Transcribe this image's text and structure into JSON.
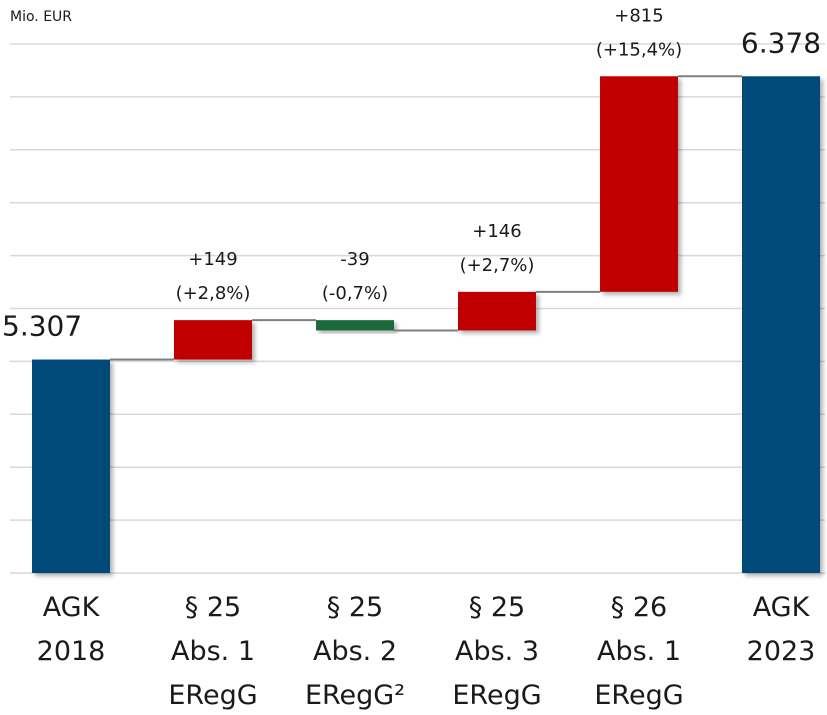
{
  "chart_data": {
    "type": "waterfall",
    "y_label": "Mio. EUR",
    "categories": [
      "AGK\n2018",
      "§ 25\nAbs. 1\nERegG",
      "§ 25\nAbs. 2\nERegG²",
      "§ 25\nAbs. 3\nERegG",
      "§ 26\nAbs. 1\nERegG",
      "AGK\n2023"
    ],
    "values": [
      5307,
      149,
      -39,
      146,
      815,
      6378
    ],
    "value_labels": [
      "5.307",
      "+149",
      "-39",
      "+146",
      "+815",
      "6.378"
    ],
    "percentage_labels": [
      null,
      "(+2,8%)",
      "(-0,7%)",
      "(+2,7%)",
      "(+15,4%)",
      null
    ],
    "colors": {
      "total": "#004a78",
      "increase": "#c00000",
      "decrease": "#1b6b3a",
      "connector": "#7f7f7f"
    },
    "ylim": [
      4500,
      6500
    ],
    "yticks": [
      4500,
      4700,
      4900,
      5100,
      5300,
      5500,
      5700,
      5900,
      6100,
      6300,
      6500
    ],
    "grid": true
  }
}
